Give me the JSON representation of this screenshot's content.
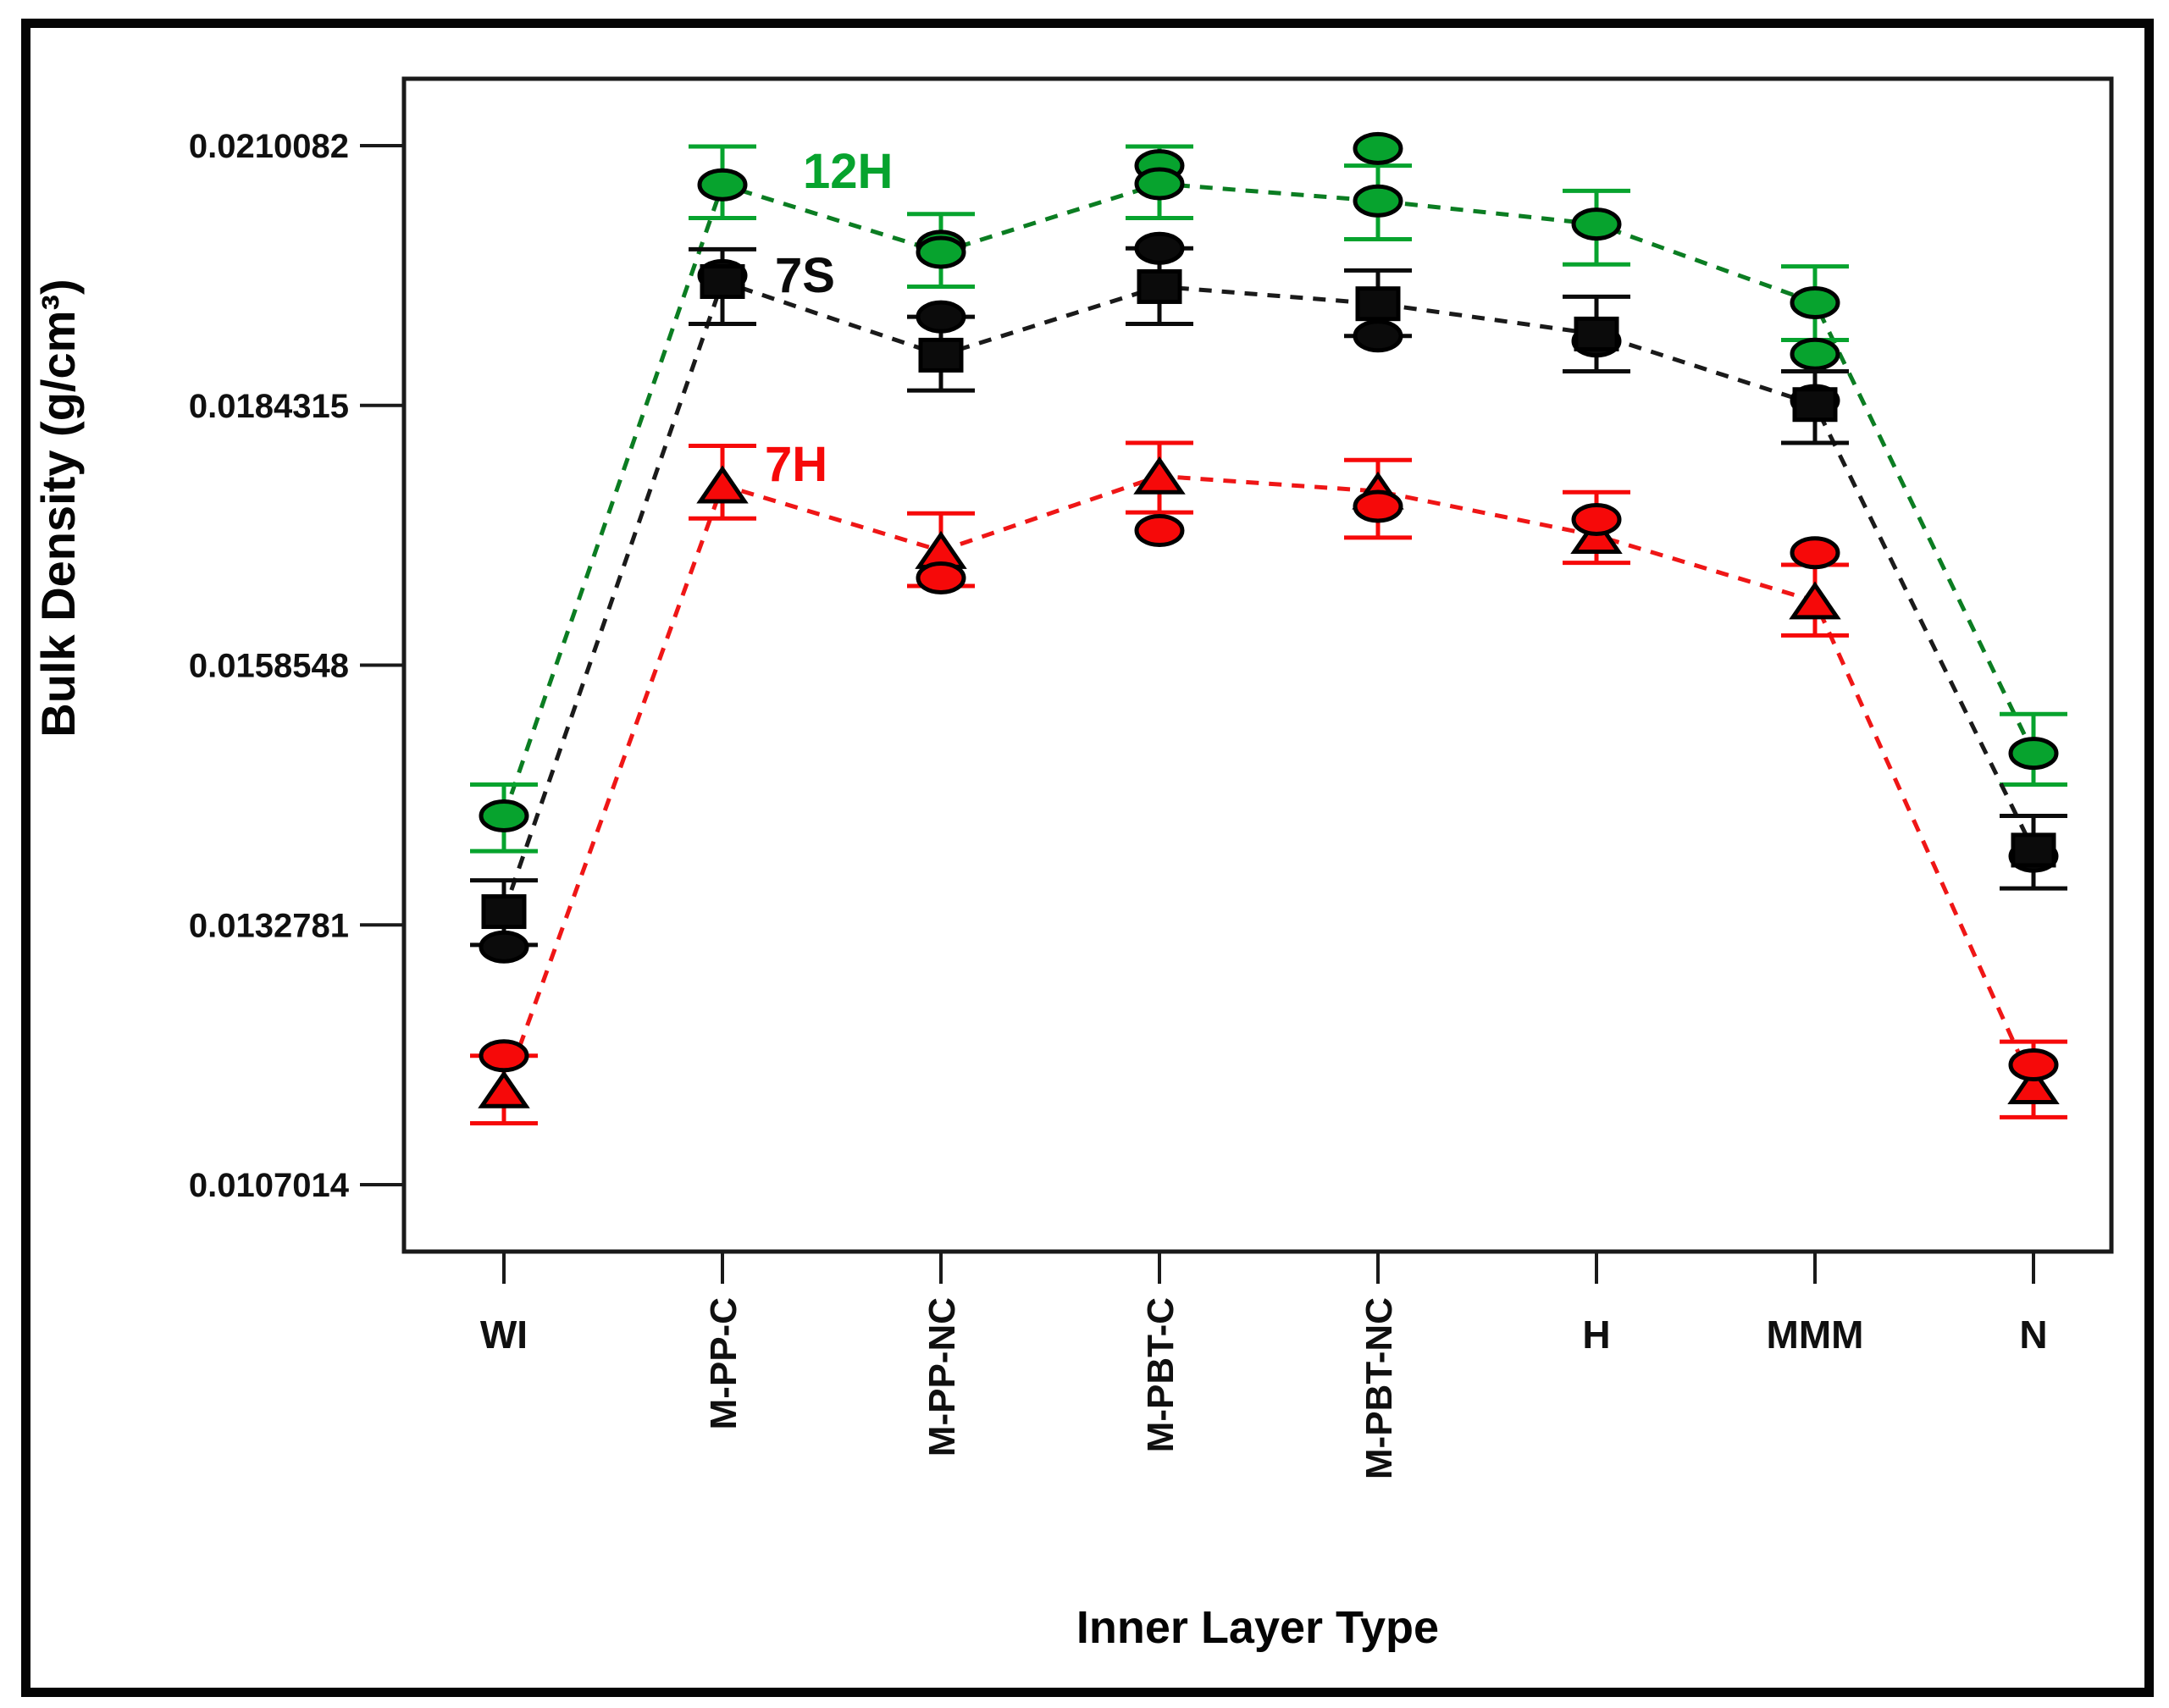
{
  "figure": {
    "background": "#ffffff",
    "frame_color": "#050505"
  },
  "chart_data": {
    "type": "line",
    "title": "",
    "xlabel": "Inner Layer Type",
    "ylabel": "Bulk Density (g/cm³)",
    "categories": [
      "WI",
      "M-PP-C",
      "M-PP-NC",
      "M-PBT-C",
      "M-PBT-NC",
      "H",
      "MMM",
      "N"
    ],
    "y_axis": {
      "tick_labels": [
        "0.0210082",
        "0.0184315",
        "0.0158548",
        "0.0132781",
        "0.0107014"
      ],
      "tick_values": [
        0.0210082,
        0.0184315,
        0.0158548,
        0.0132781,
        0.0107014
      ],
      "ylim": [
        0.010037,
        0.021672
      ]
    },
    "grid": false,
    "legend_position": "inside-plot stacked labels near second category",
    "series": [
      {
        "name": "12H",
        "color": "#07a32e",
        "line_color": "#0b7d22",
        "marker": "ellipse",
        "extra_marker": "ellipse",
        "line_style": "dashed",
        "values": [
          0.01436,
          0.02062,
          0.01995,
          0.02063,
          0.02046,
          0.02023,
          0.01945,
          0.01498
        ],
        "err_high": [
          0.01467,
          0.021,
          0.02033,
          0.021,
          0.02081,
          0.02056,
          0.01981,
          0.01537
        ],
        "err_low": [
          0.01401,
          0.02029,
          0.01961,
          0.02029,
          0.02008,
          0.01983,
          0.01908,
          0.01467
        ],
        "extra_points": [
          null,
          null,
          0.02001,
          0.02081,
          0.02098,
          null,
          0.01894,
          null
        ]
      },
      {
        "name": "7S",
        "color": "#0b0b0b",
        "line_color": "#1a1a1a",
        "marker": "square",
        "extra_marker": "ellipse",
        "line_style": "dashed",
        "values": [
          0.01341,
          0.01966,
          0.01893,
          0.01961,
          0.01944,
          0.01914,
          0.01844,
          0.01402
        ],
        "err_high": [
          0.01372,
          0.01998,
          0.01931,
          0.01999,
          0.01977,
          0.01951,
          0.01877,
          0.01436
        ],
        "err_low": [
          0.01308,
          0.01924,
          0.01858,
          0.01924,
          0.01912,
          0.01877,
          0.01806,
          0.01364
        ],
        "extra_points": [
          0.01306,
          0.01972,
          0.01931,
          0.01999,
          0.01912,
          0.01907,
          0.01848,
          0.01396
        ]
      },
      {
        "name": "7H",
        "color": "#f60909",
        "line_color": "#ef1616",
        "marker": "triangle",
        "extra_marker": "ellipse",
        "line_style": "dashed",
        "values": [
          0.01164,
          0.01764,
          0.01699,
          0.01773,
          0.01758,
          0.01714,
          0.01649,
          0.01168
        ],
        "err_high": [
          0.01198,
          0.01803,
          0.01736,
          0.01806,
          0.01789,
          0.01757,
          0.01685,
          0.01212
        ],
        "err_low": [
          0.01131,
          0.01731,
          0.01664,
          0.01737,
          0.01712,
          0.01687,
          0.01615,
          0.01137
        ],
        "extra_points": [
          0.01198,
          null,
          0.01672,
          0.01719,
          0.01743,
          0.0173,
          0.01697,
          0.01189
        ]
      }
    ]
  }
}
